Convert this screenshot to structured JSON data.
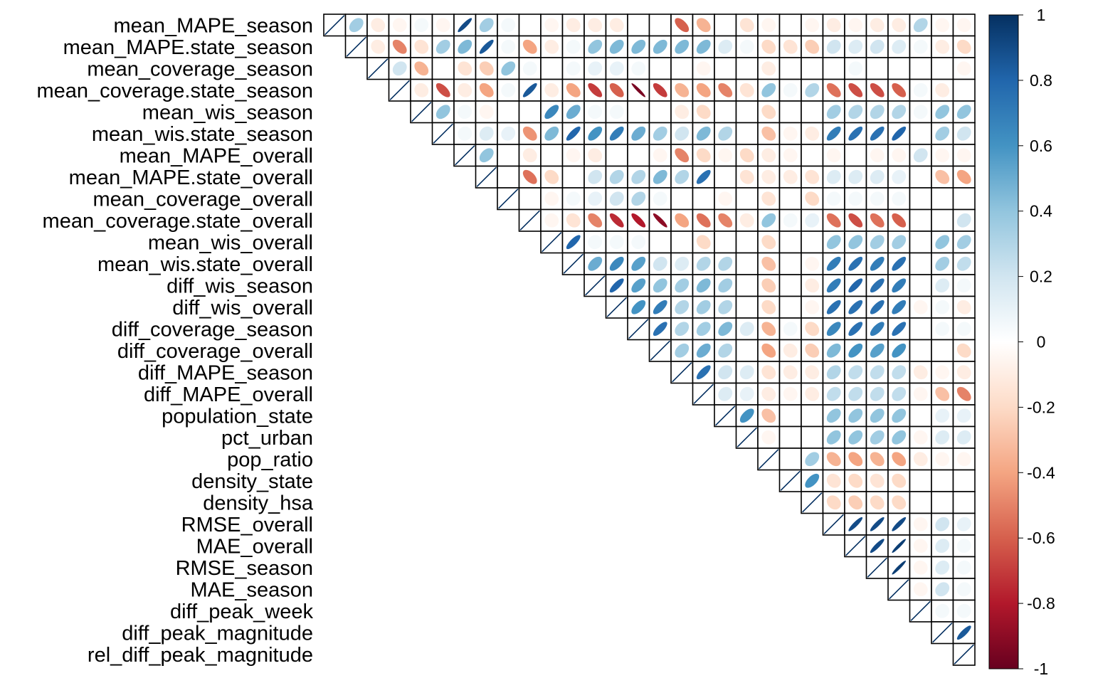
{
  "chart_data": {
    "type": "heatmap",
    "subtype": "correlation-matrix-ellipse-upper-triangle",
    "variables": [
      "mean_MAPE_season",
      "mean_MAPE.state_season",
      "mean_coverage_season",
      "mean_coverage.state_season",
      "mean_wis_season",
      "mean_wis.state_season",
      "mean_MAPE_overall",
      "mean_MAPE.state_overall",
      "mean_coverage_overall",
      "mean_coverage.state_overall",
      "mean_wis_overall",
      "mean_wis.state_overall",
      "diff_wis_season",
      "diff_wis_overall",
      "diff_coverage_season",
      "diff_coverage_overall",
      "diff_MAPE_season",
      "diff_MAPE_overall",
      "population_state",
      "pct_urban",
      "pop_ratio",
      "density_state",
      "density_hsa",
      "RMSE_overall",
      "MAE_overall",
      "RMSE_season",
      "MAE_season",
      "diff_peak_week",
      "diff_peak_magnitude",
      "rel_diff_peak_magnitude"
    ],
    "matrix": [
      [
        1.0,
        0.35,
        -0.1,
        -0.05,
        0.05,
        -0.05,
        0.9,
        0.35,
        0.05,
        0.0,
        -0.05,
        -0.1,
        -0.1,
        -0.1,
        0.0,
        0.0,
        -0.6,
        -0.35,
        0.0,
        -0.15,
        -0.05,
        0.0,
        -0.05,
        -0.1,
        -0.05,
        -0.1,
        -0.1,
        0.3,
        -0.05,
        -0.05
      ],
      [
        0.35,
        1.0,
        -0.1,
        -0.5,
        -0.15,
        0.35,
        0.45,
        0.85,
        0.05,
        -0.4,
        -0.1,
        0.05,
        0.4,
        0.45,
        0.45,
        0.45,
        0.45,
        0.45,
        0.15,
        0.05,
        -0.2,
        -0.15,
        -0.25,
        0.2,
        0.15,
        0.2,
        0.15,
        0.05,
        -0.1,
        -0.2
      ],
      [
        -0.1,
        -0.1,
        1.0,
        0.2,
        -0.35,
        0.0,
        -0.15,
        -0.25,
        0.4,
        0.05,
        0.0,
        0.05,
        0.1,
        0.1,
        0.05,
        0.0,
        0.0,
        -0.05,
        0.0,
        0.0,
        -0.1,
        0.0,
        0.0,
        0.0,
        0.05,
        0.0,
        0.0,
        0.0,
        0.0,
        -0.05
      ],
      [
        -0.05,
        -0.5,
        0.2,
        1.0,
        -0.1,
        -0.65,
        -0.1,
        -0.4,
        0.05,
        0.85,
        -0.1,
        -0.4,
        -0.7,
        -0.6,
        -0.95,
        -0.7,
        -0.35,
        -0.4,
        -0.5,
        -0.15,
        0.4,
        0.05,
        0.3,
        -0.55,
        -0.65,
        -0.65,
        -0.6,
        0.05,
        -0.1,
        0.0
      ],
      [
        0.05,
        -0.15,
        -0.35,
        -0.1,
        1.0,
        0.4,
        0.05,
        -0.05,
        0.0,
        0.0,
        0.65,
        0.5,
        0.05,
        0.05,
        0.0,
        0.0,
        -0.1,
        -0.2,
        0.0,
        0.0,
        -0.2,
        0.0,
        0.0,
        0.35,
        0.3,
        0.3,
        0.3,
        0.05,
        0.4,
        0.4
      ],
      [
        -0.05,
        0.35,
        0.0,
        -0.65,
        0.4,
        1.0,
        0.05,
        0.15,
        0.1,
        -0.45,
        0.45,
        0.8,
        0.6,
        0.7,
        0.5,
        0.35,
        0.2,
        0.45,
        0.3,
        0.0,
        -0.3,
        -0.05,
        -0.1,
        0.7,
        0.75,
        0.75,
        0.8,
        0.0,
        0.35,
        0.2
      ],
      [
        0.9,
        0.45,
        -0.15,
        -0.1,
        0.05,
        0.05,
        1.0,
        0.4,
        0.0,
        -0.1,
        0.0,
        -0.05,
        -0.1,
        0.0,
        0.0,
        -0.05,
        -0.5,
        -0.2,
        -0.05,
        -0.2,
        -0.1,
        -0.05,
        0.0,
        -0.05,
        0.0,
        -0.05,
        -0.05,
        0.2,
        -0.05,
        -0.05
      ],
      [
        0.35,
        0.85,
        -0.25,
        -0.4,
        -0.05,
        0.15,
        0.4,
        1.0,
        0.0,
        -0.55,
        -0.2,
        0.0,
        0.2,
        0.3,
        0.3,
        0.45,
        0.3,
        0.75,
        0.0,
        -0.15,
        -0.1,
        -0.1,
        -0.15,
        0.15,
        0.15,
        0.15,
        0.1,
        0.0,
        -0.3,
        -0.4
      ],
      [
        0.05,
        0.05,
        0.4,
        0.05,
        0.0,
        0.1,
        0.0,
        0.0,
        1.0,
        0.0,
        -0.05,
        0.05,
        0.1,
        0.2,
        0.3,
        0.05,
        0.0,
        0.0,
        -0.05,
        0.0,
        -0.15,
        0.0,
        -0.2,
        0.05,
        0.05,
        0.05,
        0.05,
        0.0,
        0.0,
        0.0
      ],
      [
        0.0,
        -0.4,
        0.05,
        0.85,
        0.0,
        -0.45,
        -0.1,
        -0.55,
        0.0,
        1.0,
        -0.05,
        -0.15,
        -0.5,
        -0.75,
        -0.8,
        -0.9,
        -0.4,
        -0.55,
        -0.5,
        -0.1,
        0.4,
        0.05,
        0.1,
        -0.55,
        -0.65,
        -0.55,
        -0.6,
        0.0,
        0.0,
        0.2
      ],
      [
        -0.05,
        -0.1,
        0.0,
        -0.1,
        0.65,
        0.45,
        0.0,
        -0.2,
        -0.05,
        -0.05,
        1.0,
        0.8,
        0.05,
        0.05,
        0.05,
        0.0,
        0.0,
        -0.2,
        0.0,
        0.0,
        -0.2,
        0.0,
        0.0,
        0.4,
        0.4,
        0.35,
        0.35,
        0.0,
        0.4,
        0.35
      ],
      [
        -0.1,
        0.05,
        0.05,
        -0.4,
        0.5,
        0.8,
        -0.05,
        0.0,
        0.05,
        -0.15,
        0.8,
        1.0,
        0.5,
        0.65,
        0.55,
        0.2,
        0.15,
        0.3,
        0.3,
        0.0,
        -0.3,
        0.0,
        -0.05,
        0.7,
        0.75,
        0.7,
        0.75,
        0.0,
        0.35,
        0.25
      ],
      [
        -0.1,
        0.4,
        0.1,
        -0.7,
        0.05,
        0.6,
        -0.1,
        0.2,
        0.1,
        -0.5,
        0.05,
        0.5,
        1.0,
        0.8,
        0.55,
        0.4,
        0.35,
        0.45,
        0.35,
        0.0,
        -0.25,
        0.0,
        -0.1,
        0.7,
        0.8,
        0.75,
        0.7,
        0.0,
        0.15,
        0.05
      ],
      [
        -0.1,
        0.45,
        0.1,
        -0.6,
        0.05,
        0.7,
        0.0,
        0.3,
        0.2,
        -0.75,
        0.05,
        0.65,
        0.8,
        1.0,
        0.6,
        0.7,
        0.3,
        0.35,
        0.3,
        0.0,
        -0.2,
        0.0,
        -0.05,
        0.75,
        0.75,
        0.75,
        0.7,
        -0.05,
        0.05,
        -0.1
      ],
      [
        0.0,
        0.45,
        0.05,
        -0.95,
        0.0,
        0.5,
        0.0,
        0.3,
        0.3,
        -0.8,
        0.05,
        0.55,
        0.55,
        0.6,
        1.0,
        0.75,
        0.3,
        0.35,
        0.45,
        0.15,
        -0.35,
        0.05,
        -0.2,
        0.65,
        0.75,
        0.7,
        0.75,
        0.0,
        0.05,
        0.05
      ],
      [
        0.0,
        0.45,
        0.0,
        -0.7,
        0.0,
        0.35,
        -0.05,
        0.45,
        0.05,
        -0.9,
        0.0,
        0.2,
        0.4,
        0.7,
        0.75,
        1.0,
        0.35,
        0.5,
        0.3,
        0.0,
        -0.4,
        -0.1,
        -0.25,
        0.45,
        0.6,
        0.55,
        0.6,
        0.0,
        0.0,
        -0.2
      ],
      [
        -0.6,
        0.45,
        0.0,
        -0.35,
        -0.1,
        0.2,
        -0.5,
        0.3,
        0.0,
        -0.4,
        0.0,
        0.15,
        0.35,
        0.3,
        0.3,
        0.35,
        1.0,
        0.75,
        0.2,
        0.15,
        -0.15,
        -0.1,
        -0.1,
        0.3,
        0.25,
        0.25,
        0.25,
        -0.1,
        -0.05,
        -0.1
      ],
      [
        -0.35,
        0.45,
        -0.05,
        -0.4,
        -0.2,
        0.45,
        -0.2,
        0.75,
        0.0,
        -0.55,
        -0.2,
        0.3,
        0.45,
        0.35,
        0.35,
        0.5,
        0.75,
        1.0,
        0.15,
        0.1,
        -0.1,
        -0.05,
        -0.1,
        0.25,
        0.25,
        0.25,
        0.25,
        -0.05,
        -0.3,
        -0.5
      ],
      [
        0.0,
        0.15,
        0.0,
        -0.5,
        0.0,
        0.3,
        -0.05,
        0.0,
        -0.05,
        -0.5,
        0.0,
        0.3,
        0.35,
        0.3,
        0.45,
        0.3,
        0.2,
        0.15,
        1.0,
        0.6,
        -0.3,
        0.0,
        0.0,
        0.4,
        0.4,
        0.4,
        0.4,
        0.0,
        0.1,
        0.1
      ],
      [
        -0.15,
        0.05,
        0.0,
        -0.15,
        0.0,
        0.0,
        -0.2,
        -0.15,
        0.0,
        -0.1,
        0.0,
        0.0,
        0.0,
        0.0,
        0.15,
        0.0,
        0.15,
        0.1,
        0.6,
        1.0,
        -0.05,
        0.0,
        0.0,
        0.4,
        0.4,
        0.35,
        0.4,
        -0.05,
        0.15,
        0.15
      ],
      [
        -0.05,
        -0.2,
        -0.1,
        0.4,
        -0.2,
        -0.3,
        -0.1,
        -0.1,
        -0.15,
        0.4,
        -0.2,
        -0.3,
        -0.25,
        -0.2,
        -0.35,
        -0.4,
        -0.15,
        -0.1,
        -0.3,
        -0.05,
        1.0,
        0.0,
        0.35,
        -0.35,
        -0.4,
        -0.35,
        -0.4,
        -0.1,
        -0.05,
        -0.05
      ],
      [
        0.0,
        -0.15,
        0.0,
        0.05,
        0.0,
        -0.05,
        -0.05,
        -0.1,
        0.0,
        0.05,
        0.0,
        0.0,
        0.0,
        0.0,
        0.05,
        -0.1,
        -0.1,
        -0.05,
        0.0,
        0.0,
        0.0,
        1.0,
        0.6,
        -0.15,
        -0.2,
        -0.15,
        -0.2,
        0.0,
        0.0,
        0.0
      ],
      [
        -0.05,
        -0.25,
        0.0,
        0.3,
        0.0,
        -0.1,
        0.0,
        -0.15,
        -0.2,
        0.1,
        0.0,
        -0.05,
        -0.1,
        -0.05,
        -0.2,
        -0.25,
        -0.1,
        -0.1,
        0.0,
        0.0,
        0.35,
        0.6,
        1.0,
        -0.2,
        -0.25,
        -0.2,
        -0.2,
        0.0,
        0.0,
        0.0
      ],
      [
        -0.1,
        0.2,
        0.0,
        -0.55,
        0.35,
        0.7,
        -0.05,
        0.15,
        0.05,
        -0.55,
        0.4,
        0.7,
        0.7,
        0.75,
        0.65,
        0.45,
        0.3,
        0.25,
        0.4,
        0.4,
        -0.35,
        -0.15,
        -0.2,
        1.0,
        0.9,
        0.9,
        0.9,
        -0.05,
        0.2,
        0.1
      ],
      [
        -0.05,
        0.15,
        0.05,
        -0.65,
        0.3,
        0.75,
        0.0,
        0.15,
        0.05,
        -0.65,
        0.4,
        0.75,
        0.8,
        0.75,
        0.75,
        0.6,
        0.25,
        0.25,
        0.4,
        0.4,
        -0.4,
        -0.2,
        -0.25,
        0.9,
        1.0,
        0.9,
        0.95,
        -0.05,
        0.15,
        0.05
      ],
      [
        -0.1,
        0.2,
        0.0,
        -0.65,
        0.3,
        0.75,
        -0.05,
        0.15,
        0.05,
        -0.55,
        0.35,
        0.7,
        0.75,
        0.75,
        0.7,
        0.55,
        0.25,
        0.25,
        0.4,
        0.35,
        -0.35,
        -0.15,
        -0.2,
        0.9,
        0.9,
        1.0,
        0.95,
        -0.05,
        0.15,
        0.05
      ],
      [
        -0.1,
        0.15,
        0.0,
        -0.6,
        0.3,
        0.8,
        -0.05,
        0.1,
        0.05,
        -0.6,
        0.35,
        0.75,
        0.7,
        0.7,
        0.75,
        0.6,
        0.25,
        0.25,
        0.4,
        0.4,
        -0.4,
        -0.2,
        -0.2,
        0.9,
        0.95,
        0.95,
        1.0,
        -0.05,
        0.2,
        0.05
      ],
      [
        0.3,
        0.05,
        0.0,
        0.05,
        0.05,
        0.0,
        0.2,
        0.0,
        0.0,
        0.0,
        0.0,
        0.0,
        0.0,
        -0.05,
        0.0,
        0.0,
        -0.1,
        -0.05,
        0.0,
        -0.05,
        -0.1,
        0.0,
        0.0,
        -0.05,
        -0.05,
        -0.05,
        -0.05,
        1.0,
        0.05,
        0.05
      ],
      [
        -0.05,
        -0.1,
        0.0,
        -0.1,
        0.4,
        0.35,
        -0.05,
        -0.3,
        0.0,
        0.0,
        0.4,
        0.35,
        0.15,
        0.05,
        0.05,
        0.0,
        -0.05,
        -0.3,
        0.1,
        0.15,
        -0.05,
        0.0,
        0.0,
        0.2,
        0.15,
        0.15,
        0.2,
        0.05,
        1.0,
        0.85
      ],
      [
        -0.05,
        -0.2,
        -0.05,
        0.0,
        0.4,
        0.2,
        -0.05,
        -0.4,
        0.0,
        0.2,
        0.35,
        0.25,
        0.05,
        -0.1,
        0.05,
        -0.2,
        -0.1,
        -0.5,
        0.1,
        0.15,
        -0.05,
        0.0,
        0.0,
        0.1,
        0.05,
        0.05,
        0.05,
        0.05,
        0.85,
        1.0
      ]
    ],
    "color_scale": {
      "min": -1,
      "max": 1,
      "stops": [
        "#67001F",
        "#B2182B",
        "#D6604D",
        "#F4A582",
        "#FDDBC7",
        "#FFFFFF",
        "#D1E5F0",
        "#92C5DE",
        "#4393C3",
        "#2166AC",
        "#053061"
      ],
      "tick_labels": [
        "1",
        "0.8",
        "0.6",
        "0.4",
        "0.2",
        "0",
        "-0.2",
        "-0.4",
        "-0.6",
        "-0.8",
        "-1"
      ]
    },
    "legend_placement": "right",
    "grid": true
  }
}
